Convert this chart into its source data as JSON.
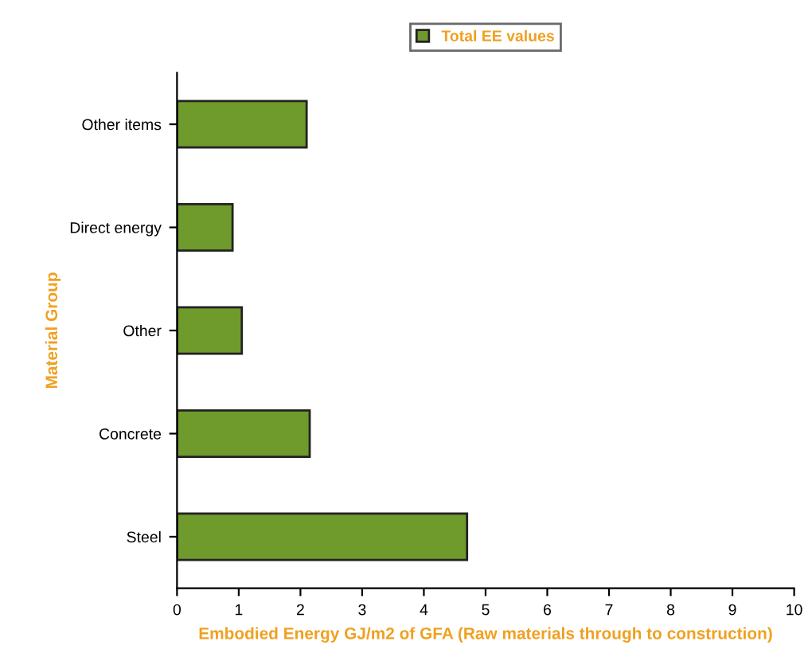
{
  "chart_data": {
    "type": "bar",
    "orientation": "horizontal",
    "categories": [
      "Other items",
      "Direct energy",
      "Other",
      "Concrete",
      "Steel"
    ],
    "series": [
      {
        "name": "Total EE values",
        "color": "#6f9a2c",
        "values": [
          2.1,
          0.9,
          1.05,
          2.15,
          4.7
        ]
      }
    ],
    "xlabel": "Embodied Energy GJ/m2 of GFA (Raw materials through to construction)",
    "ylabel": "Material Group",
    "xlim": [
      0,
      10
    ],
    "xticks": [
      0,
      1,
      2,
      3,
      4,
      5,
      6,
      7,
      8,
      9,
      10
    ],
    "grid": false,
    "legend": "top"
  }
}
